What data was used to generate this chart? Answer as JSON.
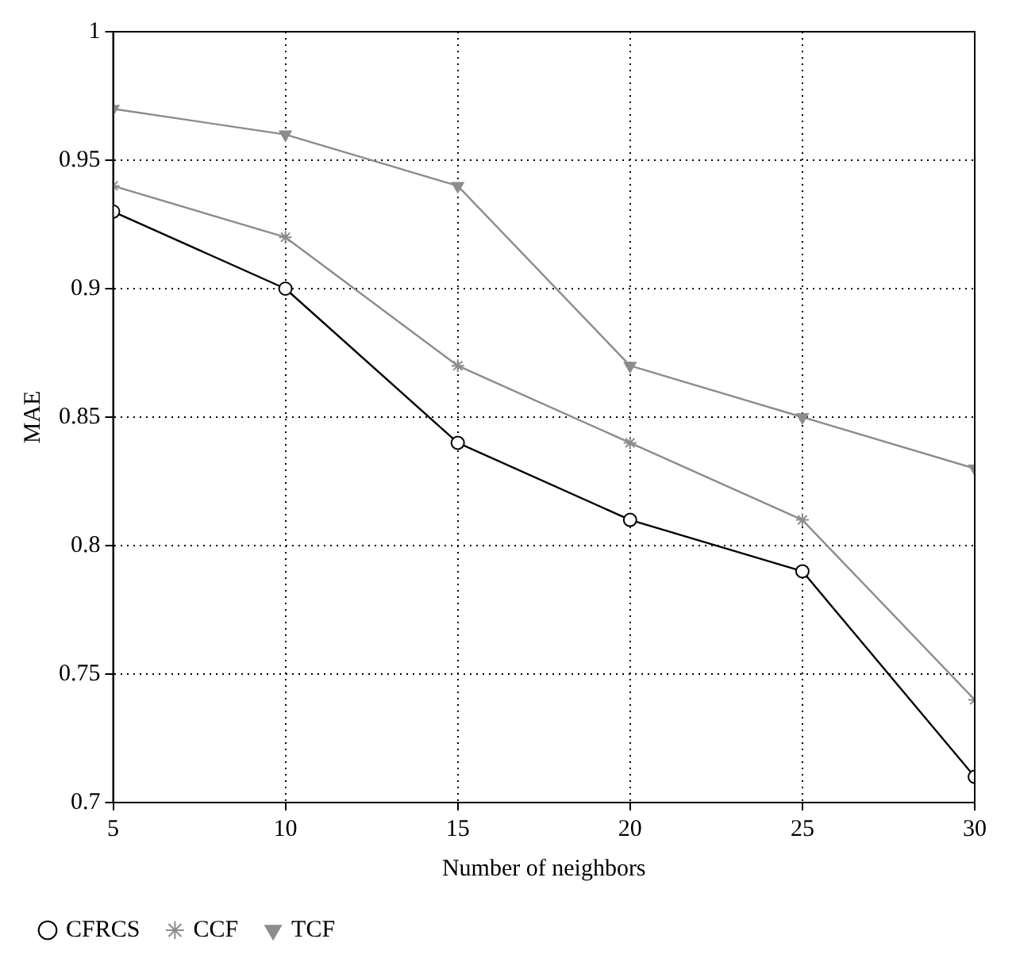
{
  "chart_data": {
    "type": "line",
    "xlabel": "Number of neighbors",
    "ylabel": "MAE",
    "x": [
      5,
      10,
      15,
      20,
      25,
      30
    ],
    "series": [
      {
        "name": "CFRCS",
        "color": "#000000",
        "marker": "circle",
        "values": [
          0.93,
          0.9,
          0.84,
          0.81,
          0.79,
          0.71
        ]
      },
      {
        "name": "CCF",
        "color": "#8c8c8c",
        "marker": "cross",
        "values": [
          0.94,
          0.92,
          0.87,
          0.84,
          0.81,
          0.74
        ]
      },
      {
        "name": "TCF",
        "color": "#8c8c8c",
        "marker": "triangle",
        "values": [
          0.97,
          0.96,
          0.94,
          0.87,
          0.85,
          0.83
        ]
      }
    ],
    "xlim": [
      5,
      30
    ],
    "xticks": [
      5,
      10,
      15,
      20,
      25,
      30
    ],
    "ylim": [
      0.7,
      1
    ],
    "yticks": [
      0.7,
      0.75,
      0.8,
      0.85,
      0.9,
      0.95,
      1
    ],
    "grid": true,
    "legend": "bottom"
  }
}
